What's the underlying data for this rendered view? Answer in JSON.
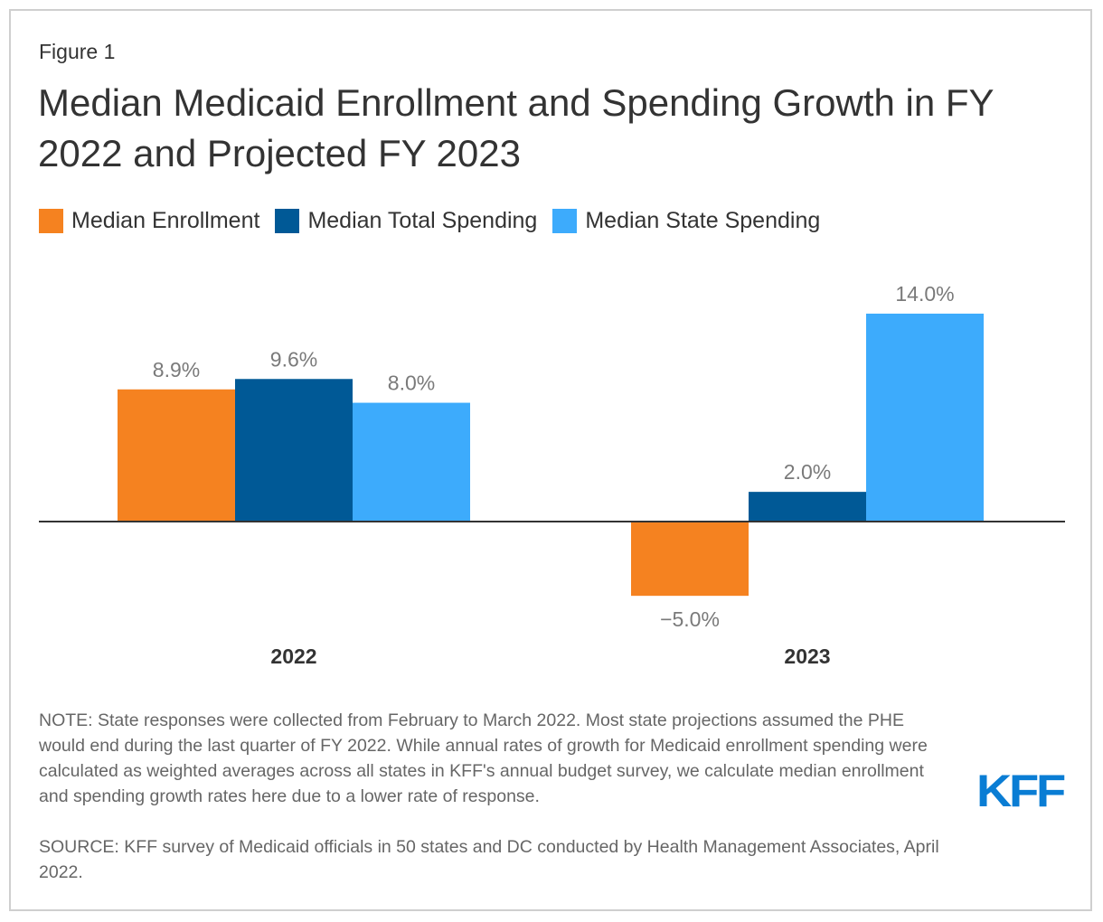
{
  "figure_label": "Figure 1",
  "title": "Median Medicaid Enrollment and Spending Growth in FY 2022 and Projected FY 2023",
  "legend": [
    {
      "label": "Median Enrollment",
      "color": "#F58220"
    },
    {
      "label": "Median Total Spending",
      "color": "#005996"
    },
    {
      "label": "Median State Spending",
      "color": "#3DABFC"
    }
  ],
  "chart_data": {
    "type": "bar",
    "title": "Median Medicaid Enrollment and Spending Growth in FY 2022 and Projected FY 2023",
    "xlabel": "",
    "ylabel": "",
    "categories": [
      "2022",
      "2023"
    ],
    "series": [
      {
        "name": "Median Enrollment",
        "values": [
          8.9,
          -5.0
        ],
        "labels": [
          "8.9%",
          "−5.0%"
        ],
        "color": "#F58220"
      },
      {
        "name": "Median Total Spending",
        "values": [
          9.6,
          2.0
        ],
        "labels": [
          "9.6%",
          "2.0%"
        ],
        "color": "#005996"
      },
      {
        "name": "Median State Spending",
        "values": [
          8.0,
          14.0
        ],
        "labels": [
          "8.0%",
          "14.0%"
        ],
        "color": "#3DABFC"
      }
    ],
    "ylim": [
      -5.0,
      14.0
    ],
    "grid": false,
    "legend_position": "top-left",
    "data_label_color": "#7a7a7a",
    "axis_color": "#333333"
  },
  "note": "NOTE: State responses were collected from February to March 2022. Most state projections assumed the PHE would end during the last quarter of FY 2022. While annual rates of growth for Medicaid enrollment spending were calculated as weighted averages across all states in KFF's annual budget survey, we calculate median enrollment and spending growth rates here due to a lower rate of response.",
  "source": "SOURCE: KFF survey of Medicaid officials in 50 states and DC conducted by Health Management Associates, April 2022.",
  "logo": {
    "text": "KFF",
    "color": "#0A7DD4"
  }
}
